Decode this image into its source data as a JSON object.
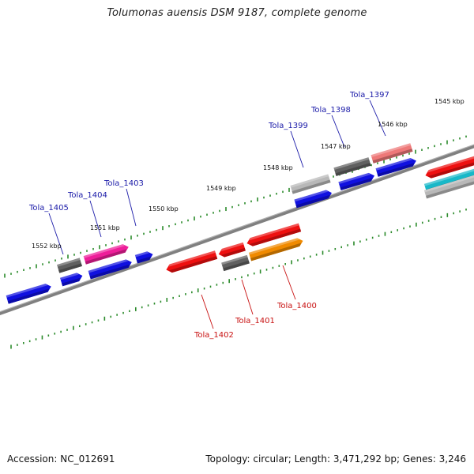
{
  "title": "Tolumonas auensis DSM 9187, complete genome",
  "footer": {
    "accession": "Accession: NC_012691",
    "topology": "Topology: circular; Length: 3,471,292 bp; Genes: 3,246"
  },
  "kbp_labels": [
    "1545 kbp",
    "1546 kbp",
    "1547 kbp",
    "1548 kbp",
    "1549 kbp",
    "1550 kbp",
    "1551 kbp",
    "1552 kbp"
  ],
  "gene_labels": {
    "forward": [
      "Tola_1397",
      "Tola_1398",
      "Tola_1399",
      "Tola_1403",
      "Tola_1404",
      "Tola_1405"
    ],
    "reverse": [
      "Tola_1400",
      "Tola_1401",
      "Tola_1402"
    ]
  },
  "colors": {
    "forward_label": "#1a1aa8",
    "reverse_label": "#c81010",
    "blue": "#1010e0",
    "red": "#ee1010",
    "gray": "#606060",
    "light_gray": "#b8b8b8",
    "pink": "#ee1e9a",
    "salmon": "#ee7878",
    "orange": "#f08a00",
    "cyan": "#18b8c8",
    "tick": "#2a8a2a",
    "backbone": "#808080"
  }
}
